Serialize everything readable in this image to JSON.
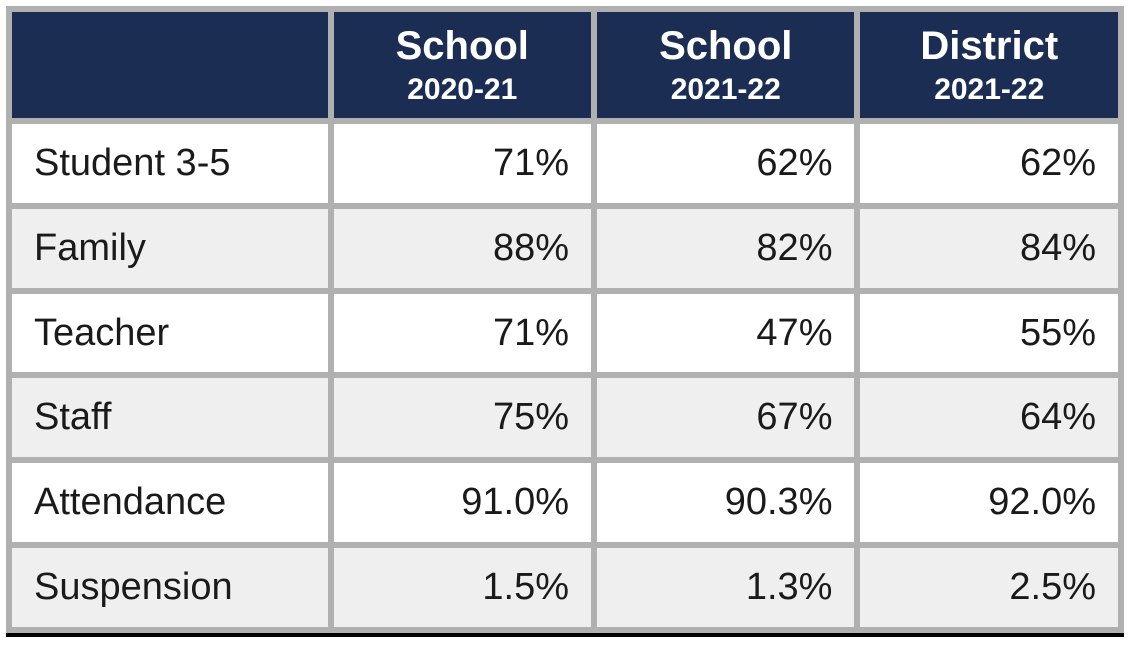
{
  "table": {
    "type": "table",
    "header_bg": "#1b2d53",
    "header_fg": "#ffffff",
    "border_color": "#b0b0b0",
    "row_bg": "#ffffff",
    "row_alt_bg": "#efefef",
    "text_color": "#1a1a1a",
    "bottom_rule_color": "#000000",
    "header_main_fontsize": 40,
    "header_sub_fontsize": 30,
    "body_fontsize": 38,
    "label_align": "left",
    "value_align": "right",
    "col_widths_pct": [
      29,
      23.666,
      23.666,
      23.666
    ],
    "columns": [
      {
        "main": "",
        "sub": ""
      },
      {
        "main": "School",
        "sub": "2020-21"
      },
      {
        "main": "School",
        "sub": "2021-22"
      },
      {
        "main": "District",
        "sub": "2021-22"
      }
    ],
    "rows": [
      {
        "label": "Student 3-5",
        "values": [
          "71%",
          "62%",
          "62%"
        ]
      },
      {
        "label": "Family",
        "values": [
          "88%",
          "82%",
          "84%"
        ]
      },
      {
        "label": "Teacher",
        "values": [
          "71%",
          "47%",
          "55%"
        ]
      },
      {
        "label": "Staff",
        "values": [
          "75%",
          "67%",
          "64%"
        ]
      },
      {
        "label": "Attendance",
        "values": [
          "91.0%",
          "90.3%",
          "92.0%"
        ]
      },
      {
        "label": "Suspension",
        "values": [
          "1.5%",
          "1.3%",
          "2.5%"
        ]
      }
    ]
  }
}
